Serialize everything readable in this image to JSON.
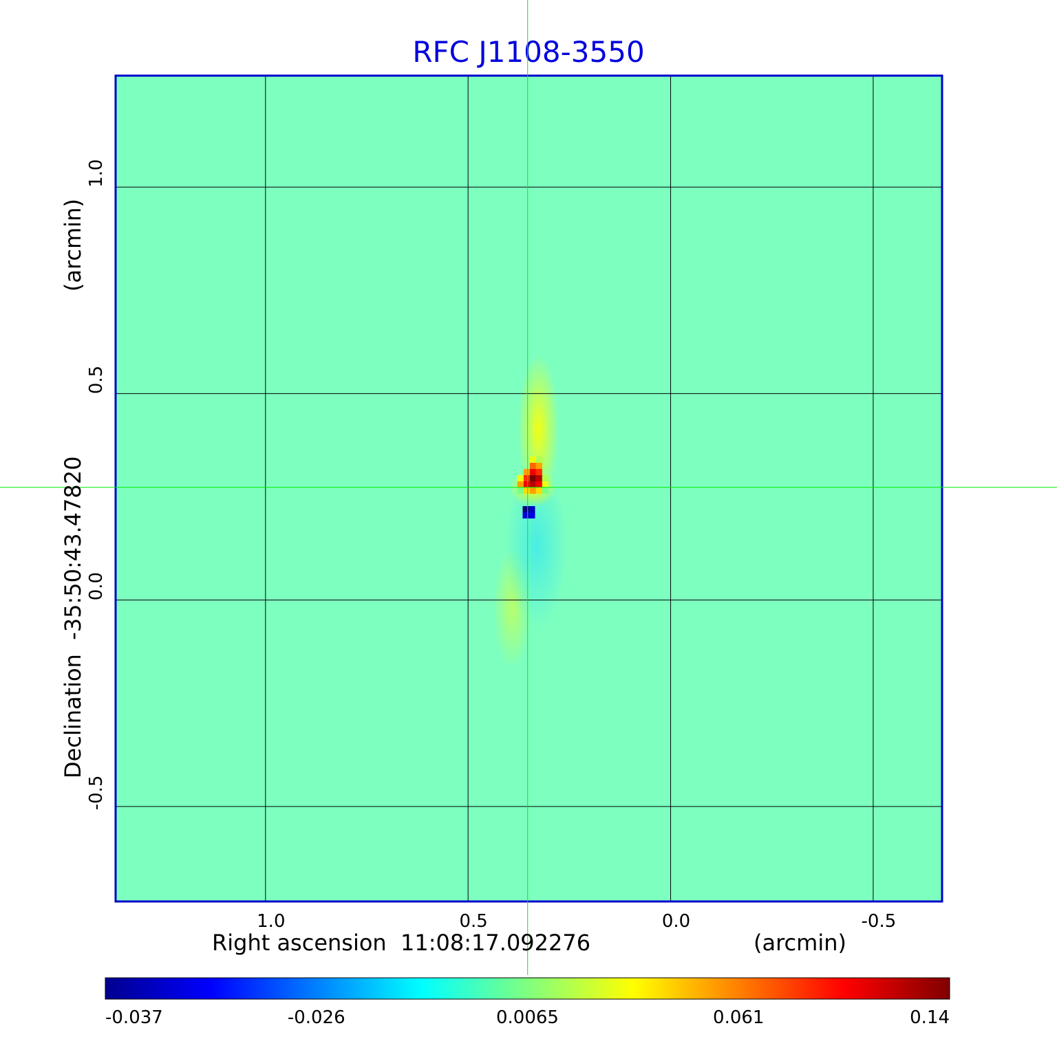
{
  "chart_data": {
    "type": "heatmap",
    "title": "RFC J1108-3550",
    "xlabel": "Right ascension  11:08:17.092276",
    "xunit": "(arcmin)",
    "ylabel": "Declination  -35:50:43.47820",
    "yunit": "(arcmin)",
    "xlim": [
      1.37,
      -0.67
    ],
    "ylim": [
      -0.73,
      1.27
    ],
    "x_ticks": [
      1.0,
      0.5,
      0.0,
      -0.5
    ],
    "x_tick_labels": [
      "1.0",
      "0.5",
      "0.0",
      "-0.5"
    ],
    "y_ticks": [
      1.0,
      0.5,
      0.0,
      -0.5
    ],
    "y_tick_labels": [
      "1.0",
      "0.5",
      "0.0",
      "-0.5"
    ],
    "grid": true,
    "crosshair": {
      "x": 0.353,
      "y": 0.273
    },
    "colorscale": "jet",
    "vmin": -0.037,
    "vmax": 0.14,
    "colorbar_ticks": [
      -0.037,
      -0.026,
      0.0065,
      0.061,
      0.14
    ],
    "colorbar_tick_labels": [
      "-0.037",
      "-0.026",
      "0.0065",
      "0.061",
      "0.14"
    ],
    "background_value": 0.0065,
    "peak": {
      "x": 0.34,
      "y": 0.28,
      "value": 0.14
    },
    "trough": {
      "x": 0.35,
      "y": 0.22,
      "value": -0.037
    }
  },
  "colors": {
    "title": "#0000dd",
    "frame": "#0000cc",
    "grid": "#000000",
    "crosshair": "#00ee00",
    "background": "#7dffc0"
  }
}
